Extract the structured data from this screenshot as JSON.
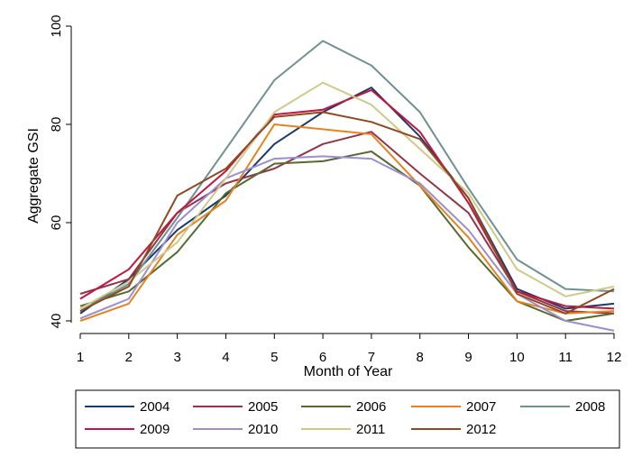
{
  "chart_data": {
    "type": "line",
    "xlabel": "Month of Year",
    "ylabel": "Aggregate GSI",
    "x": [
      1,
      2,
      3,
      4,
      5,
      6,
      7,
      8,
      9,
      10,
      11,
      12
    ],
    "xlim": [
      1,
      12
    ],
    "ylim": [
      40,
      100
    ],
    "yticks": [
      40,
      60,
      80,
      100
    ],
    "grid": false,
    "legend_position": "bottom",
    "series": [
      {
        "name": "2004",
        "color": "#1a3a6b",
        "values": [
          41.5,
          48.5,
          58.5,
          65.5,
          76,
          82.5,
          87.5,
          77.5,
          65,
          46.5,
          42.5,
          43.5
        ]
      },
      {
        "name": "2005",
        "color": "#94344a",
        "values": [
          45.5,
          48.5,
          62,
          68,
          71,
          76,
          78.5,
          70,
          62,
          46,
          42,
          41.5
        ]
      },
      {
        "name": "2006",
        "color": "#556b2f",
        "values": [
          43,
          46,
          54,
          66,
          72,
          72.5,
          74.5,
          67.5,
          55,
          44,
          40,
          41.5
        ]
      },
      {
        "name": "2007",
        "color": "#e8821e",
        "values": [
          40,
          43.5,
          57.5,
          64.5,
          80,
          79,
          78,
          67.5,
          57,
          44,
          41.5,
          42
        ]
      },
      {
        "name": "2008",
        "color": "#6f9191",
        "values": [
          42,
          47.5,
          61,
          75,
          89,
          97,
          92,
          82.5,
          67,
          52.5,
          46.5,
          46
        ]
      },
      {
        "name": "2009",
        "color": "#c0163f",
        "values": [
          44.5,
          50.5,
          62,
          70.5,
          82,
          83,
          87,
          78.5,
          64,
          46,
          43,
          42.5
        ]
      },
      {
        "name": "2010",
        "color": "#9a8fd1",
        "values": [
          40.5,
          44.5,
          60,
          69,
          73,
          73.5,
          73,
          68,
          58.5,
          45.5,
          40,
          38
        ]
      },
      {
        "name": "2011",
        "color": "#cfc98a",
        "values": [
          42.5,
          48,
          56,
          69,
          82.5,
          88.5,
          84,
          75,
          66,
          50.5,
          45,
          47
        ]
      },
      {
        "name": "2012",
        "color": "#8f4a22",
        "values": [
          42,
          47,
          65.5,
          71,
          81.5,
          82.5,
          80.5,
          77,
          65,
          45.5,
          41.5,
          46.5
        ]
      }
    ]
  }
}
